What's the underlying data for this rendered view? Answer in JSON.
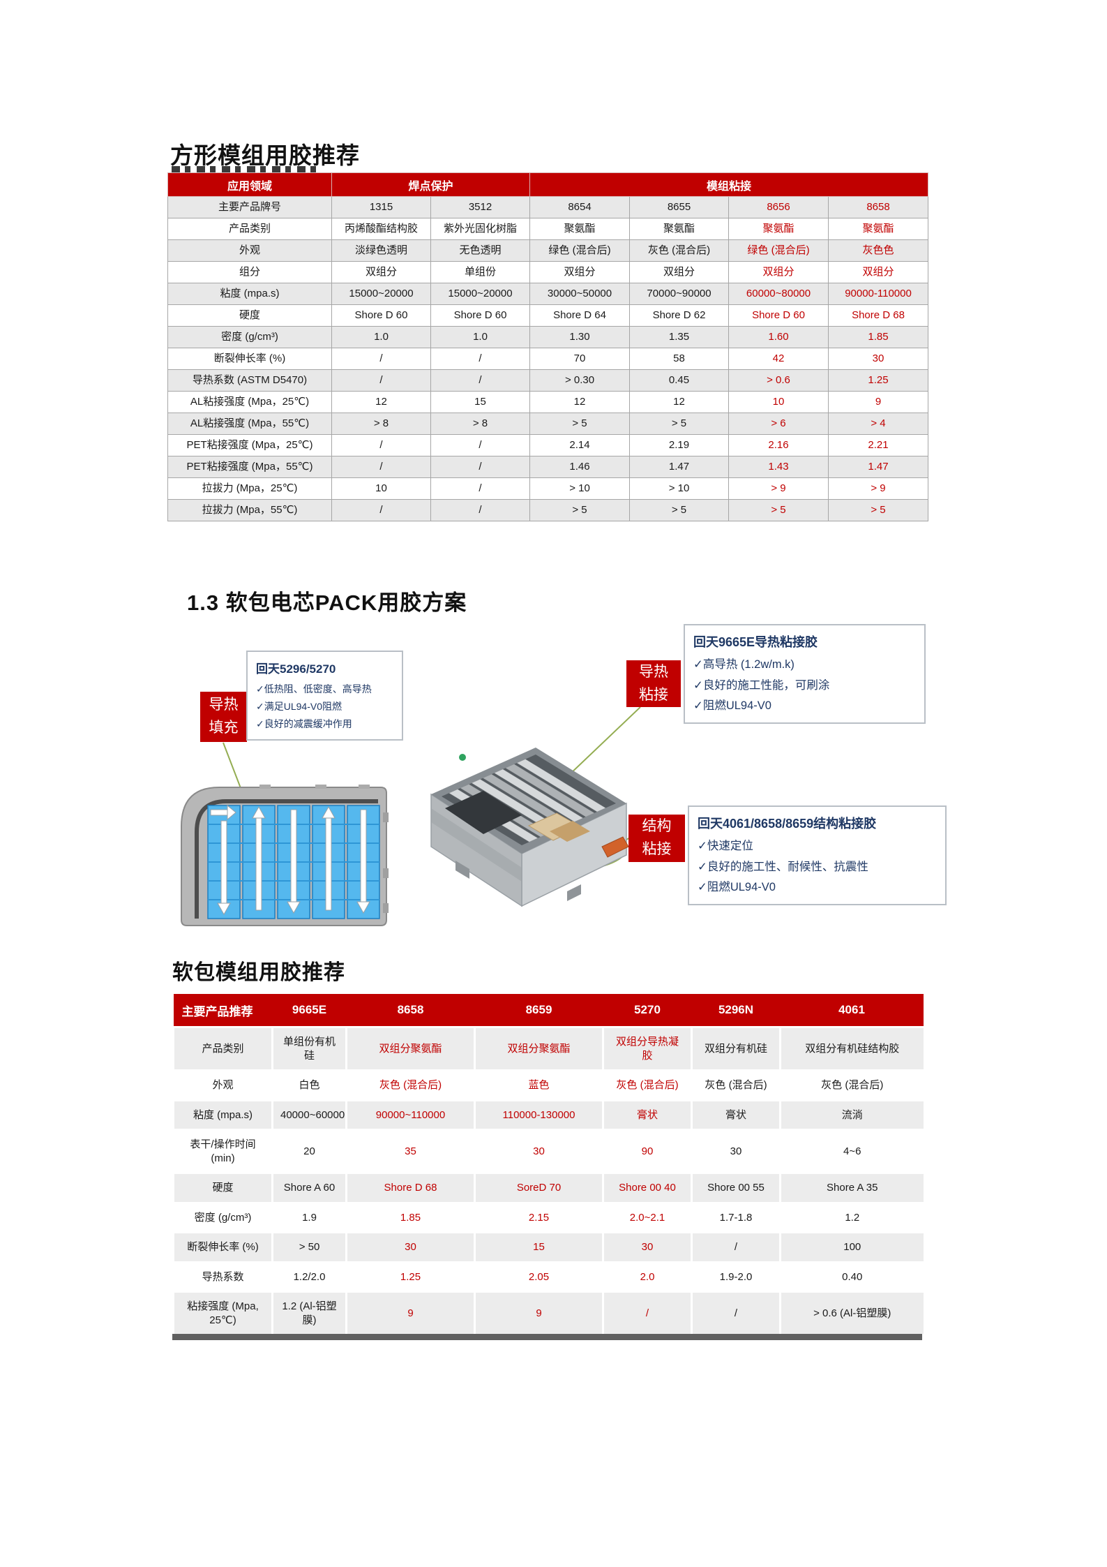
{
  "colors": {
    "accent_red": "#C00000",
    "navy": "#1F3864",
    "leader_green": "#94AD52",
    "row_gray_table1": "#E8E8E8",
    "row_gray_table2": "#ECECEC",
    "cell_blue": "#55B8EE"
  },
  "titles": {
    "square_module": "方形模组用胶推荐",
    "pack_section": "1.3 软包电芯PACK用胶方案",
    "pouch_module": "软包模组用胶推荐"
  },
  "table1": {
    "header_cells": [
      {
        "label": "应用领域",
        "span": 1
      },
      {
        "label": "焊点保护",
        "span": 2
      },
      {
        "label": "模组粘接",
        "span": 4
      }
    ],
    "highlight_value_indices": [
      4,
      5
    ],
    "rows": [
      {
        "label": "主要产品牌号",
        "values": [
          "1315",
          "3512",
          "8654",
          "8655",
          "8656",
          "8658"
        ]
      },
      {
        "label": "产品类别",
        "values": [
          "丙烯酸酯结构胶",
          "紫外光固化树脂",
          "聚氨酯",
          "聚氨酯",
          "聚氨酯",
          "聚氨酯"
        ]
      },
      {
        "label": "外观",
        "values": [
          "淡绿色透明",
          "无色透明",
          "绿色 (混合后)",
          "灰色 (混合后)",
          "绿色 (混合后)",
          "灰色色"
        ]
      },
      {
        "label": "组分",
        "values": [
          "双组分",
          "单组份",
          "双组分",
          "双组分",
          "双组分",
          "双组分"
        ]
      },
      {
        "label": "粘度 (mpa.s)",
        "values": [
          "15000~20000",
          "15000~20000",
          "30000~50000",
          "70000~90000",
          "60000~80000",
          "90000-110000"
        ]
      },
      {
        "label": "硬度",
        "values": [
          "Shore D 60",
          "Shore D 60",
          "Shore D 64",
          "Shore D 62",
          "Shore D 60",
          "Shore D 68"
        ]
      },
      {
        "label": "密度 (g/cm³)",
        "values": [
          "1.0",
          "1.0",
          "1.30",
          "1.35",
          "1.60",
          "1.85"
        ]
      },
      {
        "label": "断裂伸长率 (%)",
        "values": [
          "/",
          "/",
          "70",
          "58",
          "42",
          "30"
        ]
      },
      {
        "label": "导热系数 (ASTM D5470)",
        "values": [
          "/",
          "/",
          "> 0.30",
          "0.45",
          "> 0.6",
          "1.25"
        ]
      },
      {
        "label": "AL粘接强度 (Mpa，25℃)",
        "values": [
          "12",
          "15",
          "12",
          "12",
          "10",
          "9"
        ]
      },
      {
        "label": "AL粘接强度 (Mpa，55℃)",
        "values": [
          "> 8",
          "> 8",
          "> 5",
          "> 5",
          "> 6",
          "> 4"
        ]
      },
      {
        "label": "PET粘接强度 (Mpa，25℃)",
        "values": [
          "/",
          "/",
          "2.14",
          "2.19",
          "2.16",
          "2.21"
        ]
      },
      {
        "label": "PET粘接强度 (Mpa，55℃)",
        "values": [
          "/",
          "/",
          "1.46",
          "1.47",
          "1.43",
          "1.47"
        ]
      },
      {
        "label": "拉拔力 (Mpa，25℃)",
        "values": [
          "10",
          "/",
          "> 10",
          "> 10",
          "> 9",
          "> 9"
        ]
      },
      {
        "label": "拉拔力 (Mpa，55℃)",
        "values": [
          "/",
          "/",
          "> 5",
          "> 5",
          "> 5",
          "> 5"
        ]
      }
    ]
  },
  "callouts": {
    "thermal_fill": {
      "line1": "导热",
      "line2": "填充"
    },
    "box_5296": {
      "title": "回天5296/5270",
      "items": [
        "✓低热阻、低密度、高导热",
        "✓满足UL94-V0阻燃",
        "✓良好的减震缓冲作用"
      ]
    },
    "thermal_bond": {
      "line1": "导热",
      "line2": "粘接"
    },
    "box_9665e": {
      "title": "回天9665E导热粘接胶",
      "items": [
        "✓高导热 (1.2w/m.k)",
        "✓良好的施工性能，可刷涂",
        "✓阻燃UL94-V0"
      ]
    },
    "structural_bond": {
      "line1": "结构",
      "line2": "粘接"
    },
    "box_4061": {
      "title": "回天4061/8658/8659结构粘接胶",
      "items": [
        "✓快速定位",
        "✓良好的施工性、耐候性、抗震性",
        "✓阻燃UL94-V0"
      ]
    }
  },
  "table2": {
    "header_cells": [
      {
        "label": "主要产品推荐",
        "span": 1
      },
      {
        "label": "9665E",
        "span": 1
      },
      {
        "label": "8658",
        "span": 1
      },
      {
        "label": "8659",
        "span": 1
      },
      {
        "label": "5270",
        "span": 1
      },
      {
        "label": "5296N",
        "span": 1
      },
      {
        "label": "4061",
        "span": 1
      }
    ],
    "highlight_value_indices": [
      1,
      2,
      3
    ],
    "rows": [
      {
        "label": "产品类别",
        "values": [
          "单组份有机硅",
          "双组分聚氨酯",
          "双组分聚氨酯",
          "双组分导热凝胶",
          "双组分有机硅",
          "双组分有机硅结构胶"
        ]
      },
      {
        "label": "外观",
        "values": [
          "白色",
          "灰色 (混合后)",
          "蓝色",
          "灰色 (混合后)",
          "灰色 (混合后)",
          "灰色 (混合后)"
        ]
      },
      {
        "label": "粘度 (mpa.s)",
        "values": [
          "40000~60000",
          "90000~110000",
          "110000-130000",
          "膏状",
          "膏状",
          "流淌"
        ]
      },
      {
        "label": "表干/操作时间 (min)",
        "values": [
          "20",
          "35",
          "30",
          "90",
          "30",
          "4~6"
        ]
      },
      {
        "label": "硬度",
        "values": [
          "Shore A 60",
          "Shore D 68",
          "SoreD 70",
          "Shore 00 40",
          "Shore 00 55",
          "Shore A 35"
        ]
      },
      {
        "label": "密度 (g/cm³)",
        "values": [
          "1.9",
          "1.85",
          "2.15",
          "2.0~2.1",
          "1.7-1.8",
          "1.2"
        ]
      },
      {
        "label": "断裂伸长率 (%)",
        "values": [
          "> 50",
          "30",
          "15",
          "30",
          "/",
          "100"
        ]
      },
      {
        "label": "导热系数",
        "values": [
          "1.2/2.0",
          "1.25",
          "2.05",
          "2.0",
          "1.9-2.0",
          "0.40"
        ]
      },
      {
        "label": "粘接强度 (Mpa, 25℃)",
        "values": [
          "1.2 (Al-铝塑膜)",
          "9",
          "9",
          "/",
          "/",
          "> 0.6 (Al-铝塑膜)"
        ]
      }
    ]
  }
}
